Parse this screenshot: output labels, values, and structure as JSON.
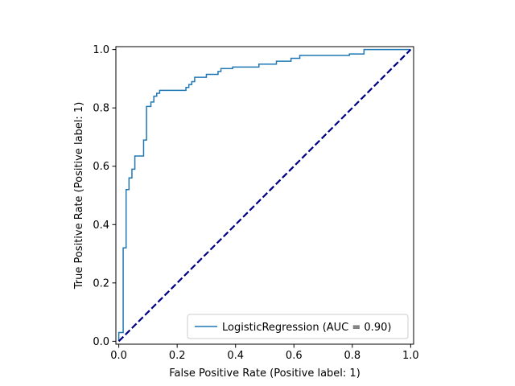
{
  "chart_data": {
    "type": "line",
    "xlabel": "False Positive Rate (Positive label: 1)",
    "ylabel": "True Positive Rate (Positive label: 1)",
    "xlim": [
      -0.01,
      1.01
    ],
    "ylim": [
      -0.01,
      1.01
    ],
    "x_ticks": [
      0.0,
      0.2,
      0.4,
      0.6,
      0.8,
      1.0
    ],
    "y_ticks": [
      0.0,
      0.2,
      0.4,
      0.6,
      0.8,
      1.0
    ],
    "x_tick_labels": [
      "0.0",
      "0.2",
      "0.4",
      "0.6",
      "0.8",
      "1.0"
    ],
    "y_tick_labels": [
      "0.0",
      "0.2",
      "0.4",
      "0.6",
      "0.8",
      "1.0"
    ],
    "grid": false,
    "legend_position": "lower right",
    "series": [
      {
        "name": "LogisticRegression (AUC = 0.90)",
        "color": "#1f77b4",
        "style": "solid",
        "x": [
          0.0,
          0.0,
          0.015,
          0.015,
          0.015,
          0.025,
          0.025,
          0.025,
          0.035,
          0.035,
          0.045,
          0.045,
          0.055,
          0.055,
          0.065,
          0.065,
          0.085,
          0.085,
          0.095,
          0.095,
          0.11,
          0.11,
          0.12,
          0.12,
          0.13,
          0.13,
          0.14,
          0.14,
          0.15,
          0.15,
          0.23,
          0.23,
          0.24,
          0.24,
          0.25,
          0.25,
          0.26,
          0.26,
          0.3,
          0.3,
          0.34,
          0.34,
          0.35,
          0.35,
          0.39,
          0.39,
          0.48,
          0.48,
          0.54,
          0.54,
          0.59,
          0.59,
          0.62,
          0.62,
          0.79,
          0.79,
          0.84,
          0.84,
          1.0
        ],
        "y": [
          0.0,
          0.03,
          0.03,
          0.32,
          0.32,
          0.32,
          0.52,
          0.52,
          0.52,
          0.56,
          0.56,
          0.59,
          0.59,
          0.635,
          0.635,
          0.635,
          0.635,
          0.69,
          0.69,
          0.805,
          0.805,
          0.82,
          0.82,
          0.84,
          0.84,
          0.85,
          0.85,
          0.86,
          0.86,
          0.86,
          0.86,
          0.87,
          0.87,
          0.88,
          0.88,
          0.89,
          0.89,
          0.905,
          0.905,
          0.915,
          0.915,
          0.925,
          0.925,
          0.935,
          0.935,
          0.94,
          0.94,
          0.95,
          0.95,
          0.96,
          0.96,
          0.97,
          0.97,
          0.98,
          0.98,
          0.985,
          0.985,
          1.0,
          1.0
        ]
      },
      {
        "name": "",
        "color": "#000080",
        "style": "dashed",
        "x": [
          0.0,
          1.0
        ],
        "y": [
          0.0,
          1.0
        ]
      }
    ]
  }
}
